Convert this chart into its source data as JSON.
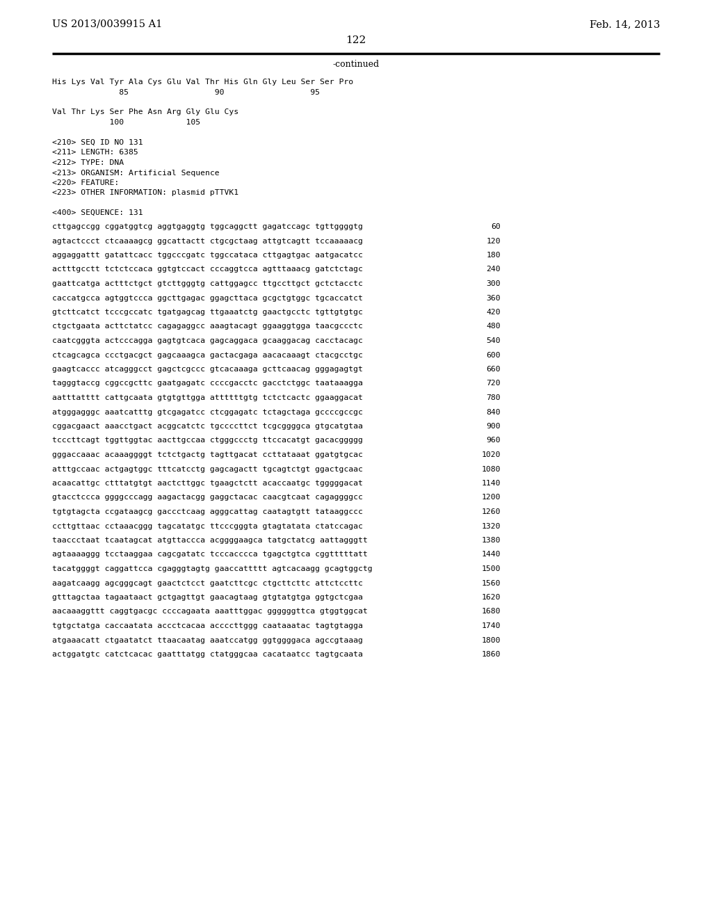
{
  "bg_color": "#ffffff",
  "header_left": "US 2013/0039915 A1",
  "header_right": "Feb. 14, 2013",
  "page_number": "122",
  "continued_label": "-continued",
  "top_section": [
    "His Lys Val Tyr Ala Cys Glu Val Thr His Gln Gly Leu Ser Ser Pro",
    "              85                  90                  95",
    "",
    "Val Thr Lys Ser Phe Asn Arg Gly Glu Cys",
    "            100             105"
  ],
  "metadata": [
    "<210> SEQ ID NO 131",
    "<211> LENGTH: 6385",
    "<212> TYPE: DNA",
    "<213> ORGANISM: Artificial Sequence",
    "<220> FEATURE:",
    "<223> OTHER INFORMATION: plasmid pTTVK1"
  ],
  "sequence_header": "<400> SEQUENCE: 131",
  "sequence_lines": [
    [
      "cttgagccgg cggatggtcg aggtgaggtg tggcaggctt gagatccagc tgttggggtg",
      "60"
    ],
    [
      "agtactccct ctcaaaagcg ggcattactt ctgcgctaag attgtcagtt tccaaaaacg",
      "120"
    ],
    [
      "aggaggattt gatattcacc tggcccgatc tggccataca cttgagtgac aatgacatcc",
      "180"
    ],
    [
      "actttgcctt tctctccaca ggtgtccact cccaggtcca agtttaaacg gatctctagc",
      "240"
    ],
    [
      "gaattcatga actttctgct gtcttgggtg cattggagcc ttgccttgct gctctacctc",
      "300"
    ],
    [
      "caccatgcca agtggtccca ggcttgagac ggagcttaca gcgctgtggc tgcaccatct",
      "360"
    ],
    [
      "gtcttcatct tcccgccatc tgatgagcag ttgaaatctg gaactgcctc tgttgtgtgc",
      "420"
    ],
    [
      "ctgctgaata acttctatcc cagagaggcc aaagtacagt ggaaggtgga taacgccctc",
      "480"
    ],
    [
      "caatcgggta actcccagga gagtgtcaca gagcaggaca gcaaggacag cacctacagc",
      "540"
    ],
    [
      "ctcagcagca ccctgacgct gagcaaagca gactacgaga aacacaaagt ctacgcctgc",
      "600"
    ],
    [
      "gaagtcaccc atcagggcct gagctcgccc gtcacaaaga gcttcaacag gggagagtgt",
      "660"
    ],
    [
      "tagggtaccg cggccgcttc gaatgagatc ccccgacctc gacctctggc taataaagga",
      "720"
    ],
    [
      "aatttatttt cattgcaata gtgtgttgga attttttgtg tctctcactc ggaaggacat",
      "780"
    ],
    [
      "atgggagggc aaatcatttg gtcgagatcc ctcggagatc tctagctaga gccccgccgc",
      "840"
    ],
    [
      "cggacgaact aaacctgact acggcatctc tgccccttct tcgcggggca gtgcatgtaa",
      "900"
    ],
    [
      "tcccttcagt tggttggtac aacttgccaa ctgggccctg ttccacatgt gacacggggg",
      "960"
    ],
    [
      "gggaccaaac acaaaggggt tctctgactg tagttgacat ccttataaat ggatgtgcac",
      "1020"
    ],
    [
      "atttgccaac actgagtggc tttcatcctg gagcagactt tgcagtctgt ggactgcaac",
      "1080"
    ],
    [
      "acaacattgc ctttatgtgt aactcttggc tgaagctctt acaccaatgc tgggggacat",
      "1140"
    ],
    [
      "gtacctccca ggggcccagg aagactacgg gaggctacac caacgtcaat cagaggggcc",
      "1200"
    ],
    [
      "tgtgtagcta ccgataagcg gaccctcaag agggcattag caatagtgtt tataaggccc",
      "1260"
    ],
    [
      "ccttgttaac cctaaacggg tagcatatgc ttcccgggta gtagtatata ctatccagac",
      "1320"
    ],
    [
      "taaccctaat tcaatagcat atgttaccca acggggaagca tatgctatcg aattagggtt",
      "1380"
    ],
    [
      "agtaaaaggg tcctaaggaa cagcgatatc tcccacccca tgagctgtca cggtttttatt",
      "1440"
    ],
    [
      "tacatggggt caggattcca cgagggtagtg gaaccattttt agtcacaagg gcagtggctg",
      "1500"
    ],
    [
      "aagatcaagg agcgggcagt gaactctcct gaatcttcgc ctgcttcttc attctccttc",
      "1560"
    ],
    [
      "gtttagctaa tagaataact gctgagttgt gaacagtaag gtgtatgtga ggtgctcgaa",
      "1620"
    ],
    [
      "aacaaaggttt caggtgacgc ccccagaata aaatttggac ggggggttca gtggtggcat",
      "1680"
    ],
    [
      "tgtgctatga caccaatata accctcacaa accccttggg caataaatac tagtgtagga",
      "1740"
    ],
    [
      "atgaaacatt ctgaatatct ttaacaatag aaatccatgg ggtggggaca agccgtaaag",
      "1800"
    ],
    [
      "actggatgtc catctcacac gaatttatgg ctatgggcaa cacataatcc tagtgcaata",
      "1860"
    ]
  ]
}
